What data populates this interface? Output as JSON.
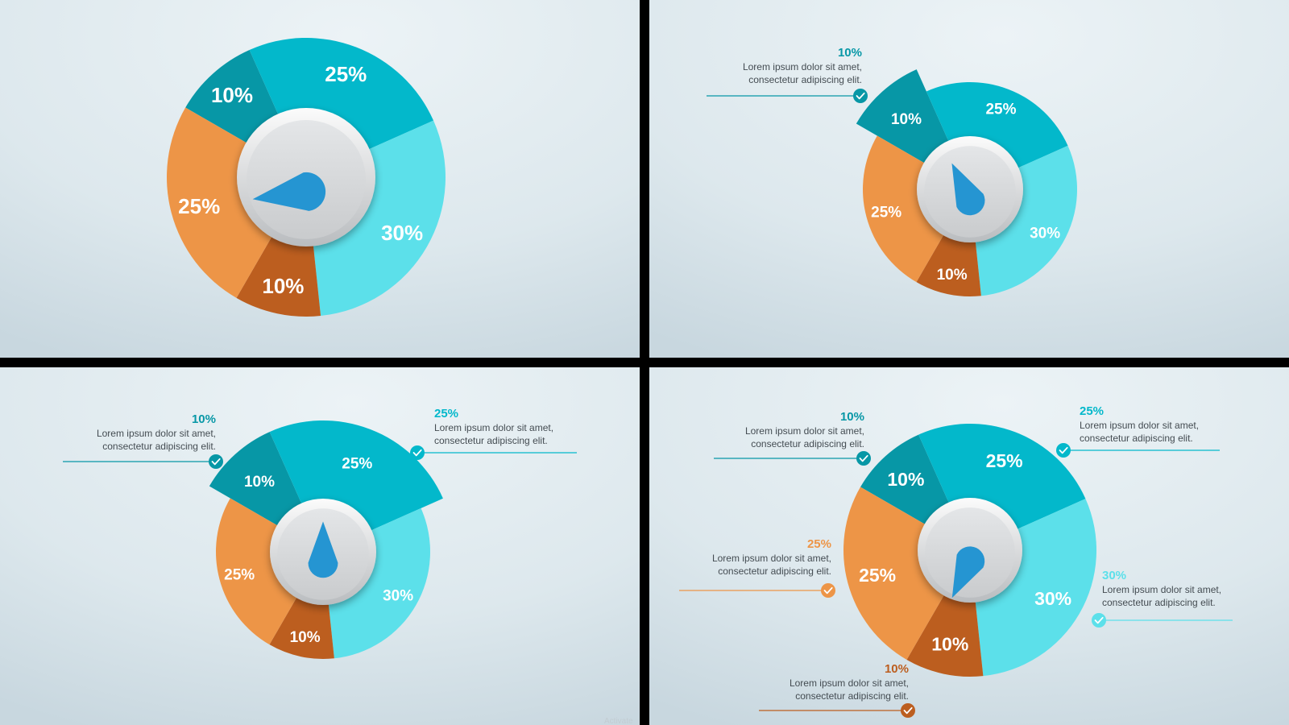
{
  "colors": {
    "teal_dark": "#0797a6",
    "teal": "#03b8cb",
    "aqua": "#5ce0ea",
    "rust": "#bc5e1f",
    "orange": "#ed9547",
    "needle": "#2595d2",
    "background": "#dce8ee"
  },
  "callout_body": {
    "line1": "Lorem ipsum dolor sit amet,",
    "line2": "consectetur adipiscing elit."
  },
  "watermark": "Activate",
  "chart_data": [
    {
      "type": "pie",
      "panel": "top-left",
      "slices": [
        {
          "label": "10%",
          "value": 10,
          "color": "teal_dark"
        },
        {
          "label": "25%",
          "value": 25,
          "color": "teal"
        },
        {
          "label": "30%",
          "value": 30,
          "color": "aqua"
        },
        {
          "label": "10%",
          "value": 10,
          "color": "rust"
        },
        {
          "label": "25%",
          "value": 25,
          "color": "orange"
        }
      ],
      "exploded": [],
      "callouts": [],
      "needle_points_to": "left"
    },
    {
      "type": "pie",
      "panel": "top-right",
      "slices": [
        {
          "label": "10%",
          "value": 10,
          "color": "teal_dark"
        },
        {
          "label": "25%",
          "value": 25,
          "color": "teal"
        },
        {
          "label": "30%",
          "value": 30,
          "color": "aqua"
        },
        {
          "label": "10%",
          "value": 10,
          "color": "rust"
        },
        {
          "label": "25%",
          "value": 25,
          "color": "orange"
        }
      ],
      "exploded": [
        "10% (dark teal)"
      ],
      "callouts": [
        {
          "pct": "10%",
          "color": "teal_dark",
          "side": "left",
          "line1": "Lorem ipsum dolor sit amet,",
          "line2": "consectetur adipiscing elit."
        }
      ],
      "needle_points_to": "top-left"
    },
    {
      "type": "pie",
      "panel": "bottom-left",
      "slices": [
        {
          "label": "10%",
          "value": 10,
          "color": "teal_dark"
        },
        {
          "label": "25%",
          "value": 25,
          "color": "teal"
        },
        {
          "label": "30%",
          "value": 30,
          "color": "aqua"
        },
        {
          "label": "10%",
          "value": 10,
          "color": "rust"
        },
        {
          "label": "25%",
          "value": 25,
          "color": "orange"
        }
      ],
      "exploded": [
        "10% (dark teal)",
        "25% (teal)"
      ],
      "callouts": [
        {
          "pct": "10%",
          "color": "teal_dark",
          "side": "left",
          "line1": "Lorem ipsum dolor sit amet,",
          "line2": "consectetur adipiscing elit."
        },
        {
          "pct": "25%",
          "color": "teal",
          "side": "right",
          "line1": "Lorem ipsum dolor sit amet,",
          "line2": "consectetur adipiscing elit."
        }
      ],
      "needle_points_to": "top"
    },
    {
      "type": "pie",
      "panel": "bottom-right",
      "slices": [
        {
          "label": "10%",
          "value": 10,
          "color": "teal_dark"
        },
        {
          "label": "25%",
          "value": 25,
          "color": "teal"
        },
        {
          "label": "30%",
          "value": 30,
          "color": "aqua"
        },
        {
          "label": "10%",
          "value": 10,
          "color": "rust"
        },
        {
          "label": "25%",
          "value": 25,
          "color": "orange"
        }
      ],
      "exploded": [],
      "callouts": [
        {
          "pct": "10%",
          "color": "teal_dark",
          "side": "left",
          "line1": "Lorem ipsum dolor sit amet,",
          "line2": "consectetur adipiscing elit."
        },
        {
          "pct": "25%",
          "color": "teal",
          "side": "right",
          "line1": "Lorem ipsum dolor sit amet,",
          "line2": "consectetur adipiscing elit."
        },
        {
          "pct": "25%",
          "color": "orange",
          "side": "left",
          "line1": "Lorem ipsum dolor sit amet,",
          "line2": "consectetur adipiscing elit."
        },
        {
          "pct": "30%",
          "color": "aqua",
          "side": "right",
          "line1": "Lorem ipsum dolor sit amet,",
          "line2": "consectetur adipiscing elit."
        },
        {
          "pct": "10%",
          "color": "rust",
          "side": "left",
          "line1": "Lorem ipsum dolor sit amet,",
          "line2": "consectetur adipiscing elit."
        }
      ],
      "needle_points_to": "bottom-left"
    }
  ]
}
